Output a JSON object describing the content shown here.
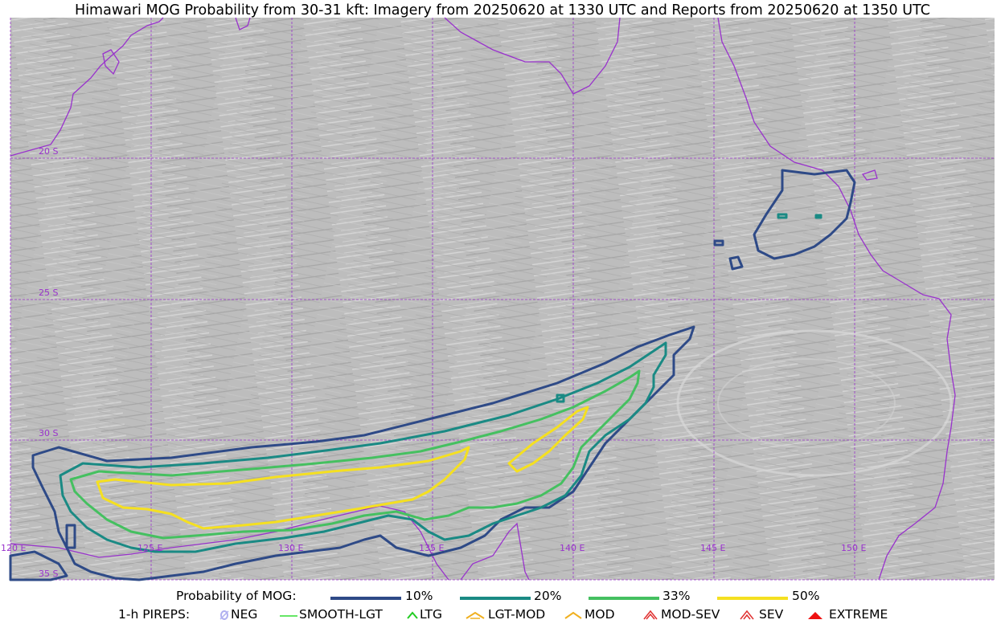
{
  "title": "Himawari MOG Probability from 30-31 kft: Imagery from 20250620 at 1330 UTC and Reports from 20250620 at 1350 UTC",
  "map": {
    "lat_labels": [
      "20 S",
      "25 S",
      "30 S",
      "35 S"
    ],
    "lon_labels": [
      "120 E",
      "125 E",
      "130 E",
      "135 E",
      "140 E",
      "145 E",
      "150 E"
    ],
    "grid_color": "#9933cc",
    "coast_color": "#9933cc",
    "background": "satellite water-vapor grayscale imagery"
  },
  "legend": {
    "prob_label": "Probability of MOG:",
    "prob_items": [
      {
        "label": "10%",
        "color": "#2e4a87"
      },
      {
        "label": "20%",
        "color": "#1a8a84"
      },
      {
        "label": "33%",
        "color": "#45c060"
      },
      {
        "label": "50%",
        "color": "#f5e020"
      }
    ],
    "pirep_label": "1-h PIREPS:",
    "pirep_items": [
      {
        "label": "NEG",
        "icon": "neg-icon",
        "color": "#b0b0f0"
      },
      {
        "label": "SMOOTH-LGT",
        "icon": "smooth-lgt-icon",
        "color": "#33dd33"
      },
      {
        "label": "LTG",
        "icon": "ltg-icon",
        "color": "#22cc22"
      },
      {
        "label": "LGT-MOD",
        "icon": "lgt-mod-icon",
        "color": "#f0b020"
      },
      {
        "label": "MOD",
        "icon": "mod-icon",
        "color": "#f0b020"
      },
      {
        "label": "MOD-SEV",
        "icon": "mod-sev-icon",
        "color": "#e03030"
      },
      {
        "label": "SEV",
        "icon": "sev-icon",
        "color": "#e03030"
      },
      {
        "label": "EXTREME",
        "icon": "extreme-icon",
        "color": "#ee1111"
      }
    ]
  }
}
